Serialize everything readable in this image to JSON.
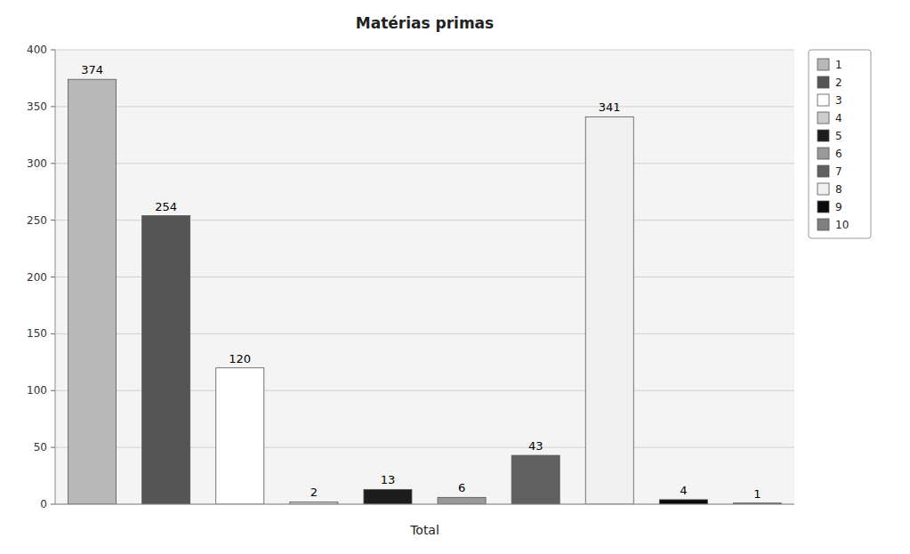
{
  "chart_data": {
    "type": "bar",
    "title": "Matérias primas",
    "xlabel": "Total",
    "categories": [
      "1",
      "2",
      "3",
      "4",
      "5",
      "6",
      "7",
      "8",
      "9",
      "10"
    ],
    "values": [
      374,
      254,
      120,
      2,
      13,
      6,
      43,
      341,
      4,
      1
    ],
    "colors": [
      "#b8b8b8",
      "#555555",
      "#ffffff",
      "#cccccc",
      "#1c1c1c",
      "#999999",
      "#606060",
      "#f0f0f0",
      "#0a0a0a",
      "#808080"
    ],
    "ylim": [
      0,
      400
    ],
    "yticks": [
      0,
      50,
      100,
      150,
      200,
      250,
      300,
      350,
      400
    ],
    "grid": true,
    "legend": "right",
    "data_labels": true,
    "tick_labels": "y"
  }
}
